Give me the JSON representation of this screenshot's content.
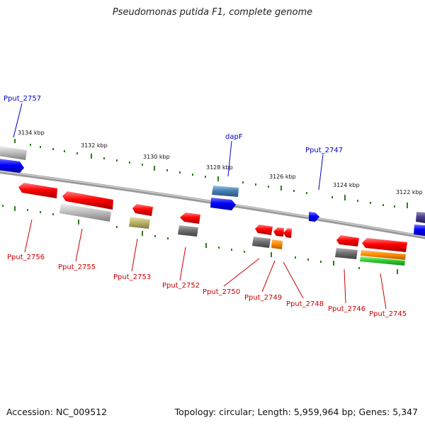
{
  "title": "Pseudomonas putida F1, complete genome",
  "footer": {
    "accession": "Accession: NC_009512",
    "summary": "Topology: circular; Length: 5,959,964 bp; Genes: 5,347"
  },
  "colors": {
    "label_top": "#0000cc",
    "label_bottom": "#cc0000",
    "tick": "#2e7d1e",
    "backbone": "#8a8a8a"
  },
  "scale_labels": [
    "3134 kbp",
    "3132 kbp",
    "3130 kbp",
    "3128 kbp",
    "3126 kbp",
    "3124 kbp",
    "3122 kbp"
  ],
  "genes_top": [
    {
      "label": "Pput_2757"
    },
    {
      "label": "dapF"
    },
    {
      "label": "Pput_2747"
    }
  ],
  "genes_bottom": [
    {
      "label": "Pput_2756"
    },
    {
      "label": "Pput_2755"
    },
    {
      "label": "Pput_2753"
    },
    {
      "label": "Pput_2752"
    },
    {
      "label": "Pput_2750"
    },
    {
      "label": "Pput_2749"
    },
    {
      "label": "Pput_2748"
    },
    {
      "label": "Pput_2746"
    },
    {
      "label": "Pput_2745"
    }
  ]
}
